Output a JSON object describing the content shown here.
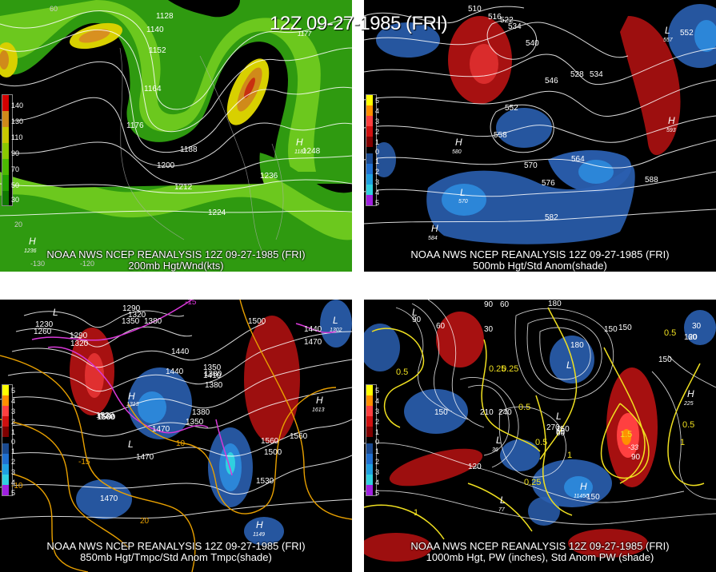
{
  "main_title": "12Z 09-27-1985 (FRI)",
  "panels": [
    {
      "id": "p200",
      "footer_line1": "NOAA NWS NCEP REANALYSIS 12Z 09-27-1985 (FRI)",
      "footer_line2": "200mb Hgt/Wnd(kts)",
      "legend": {
        "labels": [
          "140",
          "130",
          "110",
          "90",
          "70",
          "50",
          "30"
        ],
        "colors": [
          "#d40000",
          "#d08a1a",
          "#c8c800",
          "#8ac800",
          "#4cb800",
          "#22a000",
          "#0f7a00"
        ]
      },
      "contour_labels": [
        "1128",
        "1140",
        "1152",
        "1164",
        "1176",
        "1188",
        "1200",
        "1212",
        "1224",
        "1236",
        "1248",
        "1177"
      ],
      "center_labels": [
        "H",
        "H"
      ],
      "center_values": [
        "1236",
        "1182"
      ],
      "lon_labels": [
        "-130",
        "-120",
        "-110",
        "-100",
        "-90",
        "-80"
      ],
      "lat_labels": [
        "20",
        "60"
      ]
    },
    {
      "id": "p500",
      "footer_line1": "NOAA NWS NCEP REANALYSIS 12Z 09-27-1985 (FRI)",
      "footer_line2": "500mb Hgt/Std Anom(shade)",
      "legend": {
        "labels": [
          "5",
          "4",
          "3",
          "2",
          "1",
          "0",
          "1",
          "2",
          "3",
          "4",
          "5"
        ],
        "colors": [
          "#ffff00",
          "#ff9000",
          "#ff4040",
          "#d01010",
          "#800000",
          "#000000",
          "#1a4a90",
          "#2070d0",
          "#20a0e0",
          "#30d0e0",
          "#a020e0"
        ]
      },
      "contour_labels": [
        "510",
        "516",
        "522",
        "534",
        "540",
        "546",
        "552",
        "558",
        "564",
        "570",
        "576",
        "582",
        "588",
        "552",
        "552",
        "528",
        "534"
      ],
      "center_labels": [
        "L",
        "L",
        "H",
        "H",
        "H",
        "L",
        "L"
      ],
      "center_values": [
        "557",
        "593",
        "580",
        "584",
        "570"
      ]
    },
    {
      "id": "p850",
      "footer_line1": "NOAA NWS NCEP REANALYSIS 12Z 09-27-1985 (FRI)",
      "footer_line2": "850mb Hgt/Tmpc/Std Anom Tmpc(shade)",
      "legend": {
        "labels": [
          "5",
          "4",
          "3",
          "2",
          "1",
          "0",
          "1",
          "2",
          "3",
          "4",
          "5"
        ],
        "colors": [
          "#ffff00",
          "#ff9000",
          "#ff4040",
          "#d01010",
          "#800000",
          "#000000",
          "#1a4a90",
          "#2070d0",
          "#20a0e0",
          "#30d0e0",
          "#a020e0"
        ]
      },
      "contour_labels": [
        "1230",
        "1260",
        "1290",
        "1320",
        "1350",
        "1380",
        "1410",
        "1440",
        "1470",
        "1500",
        "1530",
        "1560",
        "1290",
        "1320",
        "1350",
        "1380",
        "-15",
        "-10",
        "5",
        "10",
        "15",
        "20",
        "-15",
        "1440",
        "1470",
        "1500",
        "1530",
        "1560"
      ],
      "center_labels": [
        "L",
        "L",
        "H",
        "H",
        "L",
        "L",
        "L",
        "H"
      ],
      "center_values": [
        "1302",
        "1613",
        "1313",
        "1149"
      ]
    },
    {
      "id": "p1000",
      "footer_line1": "NOAA NWS NCEP REANALYSIS 12Z 09-27-1985 (FRI)",
      "footer_line2": "1000mb Hgt, PW (inches), Std Anom PW (shade)",
      "legend": {
        "labels": [
          "5",
          "4",
          "3",
          "2",
          "1",
          "0",
          "1",
          "2",
          "3",
          "4",
          "5"
        ],
        "colors": [
          "#ffff00",
          "#ff9000",
          "#ff4040",
          "#d01010",
          "#800000",
          "#000000",
          "#1a4a90",
          "#2070d0",
          "#20a0e0",
          "#30d0e0",
          "#a020e0"
        ]
      },
      "contour_labels": [
        "180",
        "90",
        "60",
        "30",
        "60",
        "90",
        "120",
        "150",
        "180",
        "210",
        "240",
        "270",
        "0.25",
        "0.5",
        "1",
        "0.5",
        "1",
        "0.25",
        "0.5",
        "1.5",
        "120",
        "150",
        "60",
        "30",
        "0.5",
        "1",
        "150",
        "120",
        "90",
        "60",
        "30",
        "0.5",
        "1"
      ],
      "center_labels": [
        "L",
        "L",
        "L",
        "H",
        "H",
        "L",
        "L",
        "L",
        "H"
      ],
      "center_values": [
        "36",
        "225",
        "11450",
        "-33",
        "-28",
        "77"
      ]
    }
  ]
}
